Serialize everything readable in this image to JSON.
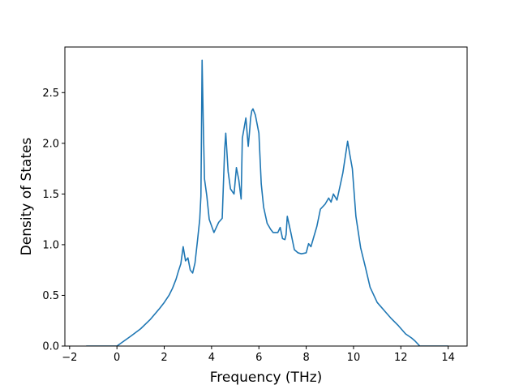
{
  "chart_data": {
    "type": "line",
    "title": "",
    "xlabel": "Frequency (THz)",
    "ylabel": "Density of States",
    "xlim": [
      -2.2,
      14.8
    ],
    "ylim": [
      0.0,
      2.95
    ],
    "xticks": [
      -2,
      0,
      2,
      4,
      6,
      8,
      10,
      12,
      14
    ],
    "xtick_labels": [
      "−2",
      "0",
      "2",
      "4",
      "6",
      "8",
      "10",
      "12",
      "14"
    ],
    "yticks": [
      0.0,
      0.5,
      1.0,
      1.5,
      2.0,
      2.5
    ],
    "ytick_labels": [
      "0.0",
      "0.5",
      "1.0",
      "1.5",
      "2.0",
      "2.5"
    ],
    "grid": false,
    "legend": false,
    "series": [
      {
        "color": "#1f77b4",
        "x": [
          -1.3,
          -0.5,
          0.0,
          0.3,
          0.6,
          1.0,
          1.4,
          1.8,
          2.0,
          2.2,
          2.35,
          2.5,
          2.6,
          2.7,
          2.8,
          2.9,
          3.0,
          3.1,
          3.2,
          3.3,
          3.4,
          3.5,
          3.55,
          3.6,
          3.65,
          3.7,
          3.8,
          3.9,
          4.1,
          4.3,
          4.45,
          4.55,
          4.6,
          4.7,
          4.8,
          4.95,
          5.05,
          5.15,
          5.25,
          5.3,
          5.45,
          5.55,
          5.6,
          5.65,
          5.7,
          5.75,
          5.85,
          6.0,
          6.1,
          6.2,
          6.35,
          6.5,
          6.6,
          6.8,
          6.9,
          7.0,
          7.1,
          7.15,
          7.2,
          7.35,
          7.5,
          7.65,
          7.8,
          8.0,
          8.1,
          8.2,
          8.3,
          8.45,
          8.6,
          8.8,
          8.95,
          9.05,
          9.15,
          9.3,
          9.45,
          9.55,
          9.75,
          9.85,
          9.95,
          10.1,
          10.3,
          10.5,
          10.7,
          11.0,
          11.3,
          11.6,
          11.9,
          12.2,
          12.45,
          12.6,
          12.8,
          13.2,
          14.0
        ],
        "y": [
          0.0,
          0.0,
          0.0,
          0.05,
          0.1,
          0.17,
          0.26,
          0.37,
          0.43,
          0.5,
          0.57,
          0.66,
          0.74,
          0.81,
          0.98,
          0.84,
          0.87,
          0.75,
          0.72,
          0.82,
          1.03,
          1.25,
          1.48,
          2.82,
          2.2,
          1.65,
          1.48,
          1.25,
          1.12,
          1.22,
          1.26,
          1.92,
          2.1,
          1.72,
          1.55,
          1.5,
          1.76,
          1.64,
          1.45,
          2.05,
          2.25,
          1.97,
          2.1,
          2.25,
          2.32,
          2.34,
          2.28,
          2.1,
          1.6,
          1.37,
          1.21,
          1.15,
          1.12,
          1.12,
          1.17,
          1.06,
          1.05,
          1.1,
          1.28,
          1.12,
          0.95,
          0.92,
          0.91,
          0.92,
          1.01,
          0.98,
          1.06,
          1.18,
          1.35,
          1.4,
          1.46,
          1.42,
          1.5,
          1.44,
          1.6,
          1.71,
          2.02,
          1.88,
          1.75,
          1.28,
          0.97,
          0.78,
          0.58,
          0.43,
          0.35,
          0.27,
          0.2,
          0.12,
          0.08,
          0.05,
          0.0,
          0.0,
          0.0
        ]
      }
    ]
  }
}
